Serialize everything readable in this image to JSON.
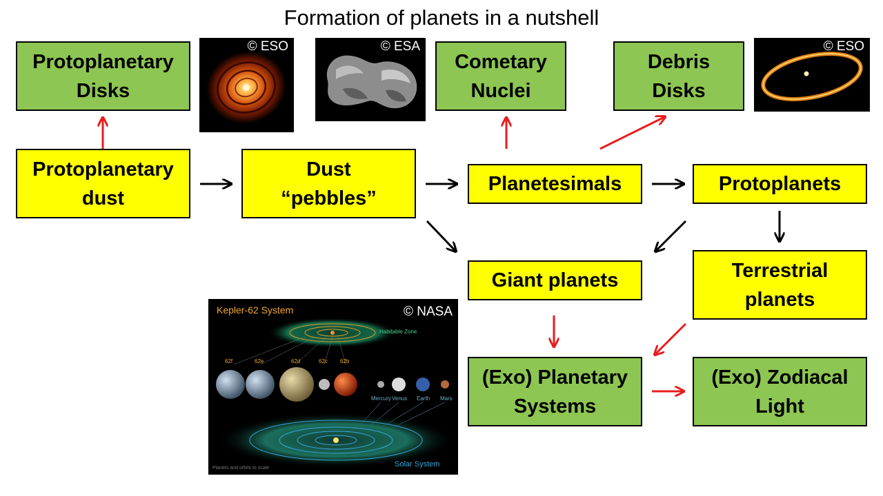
{
  "title": "Formation of planets in a nutshell",
  "nodes": {
    "protoplanetary_disks": "Protoplanetary\nDisks",
    "cometary_nuclei": "Cometary\nNuclei",
    "debris_disks": "Debris\nDisks",
    "protoplanetary_dust": "Protoplanetary\ndust",
    "dust_pebbles": "Dust\n“pebbles”",
    "planetesimals": "Planetesimals",
    "protoplanets": "Protoplanets",
    "giant_planets": "Giant planets",
    "terrestrial_planets": "Terrestrial\nplanets",
    "exo_planetary_systems": "(Exo) Planetary\nSystems",
    "exo_zodiacal_light": "(Exo) Zodiacal\nLight"
  },
  "images": {
    "disk_image_credit": "© ESO",
    "comet_image_credit": "© ESA",
    "debris_image_credit": "© ESO",
    "kepler": {
      "credit": "© NASA",
      "title": "Kepler-62 System",
      "habitable_zone": "Habitable Zone",
      "kepler_planets": [
        "62f",
        "62e",
        "62d",
        "62c",
        "62b"
      ],
      "solar_planets": [
        "Mercury",
        "Venus",
        "Earth",
        "Mars"
      ],
      "solar_system": "Solar System",
      "footnote": "Planets and orbits to scale"
    }
  },
  "colors": {
    "process_box": "#ffff00",
    "observable_box": "#8dc652",
    "process_arrow": "#000000",
    "observation_arrow": "#e81d1d"
  }
}
